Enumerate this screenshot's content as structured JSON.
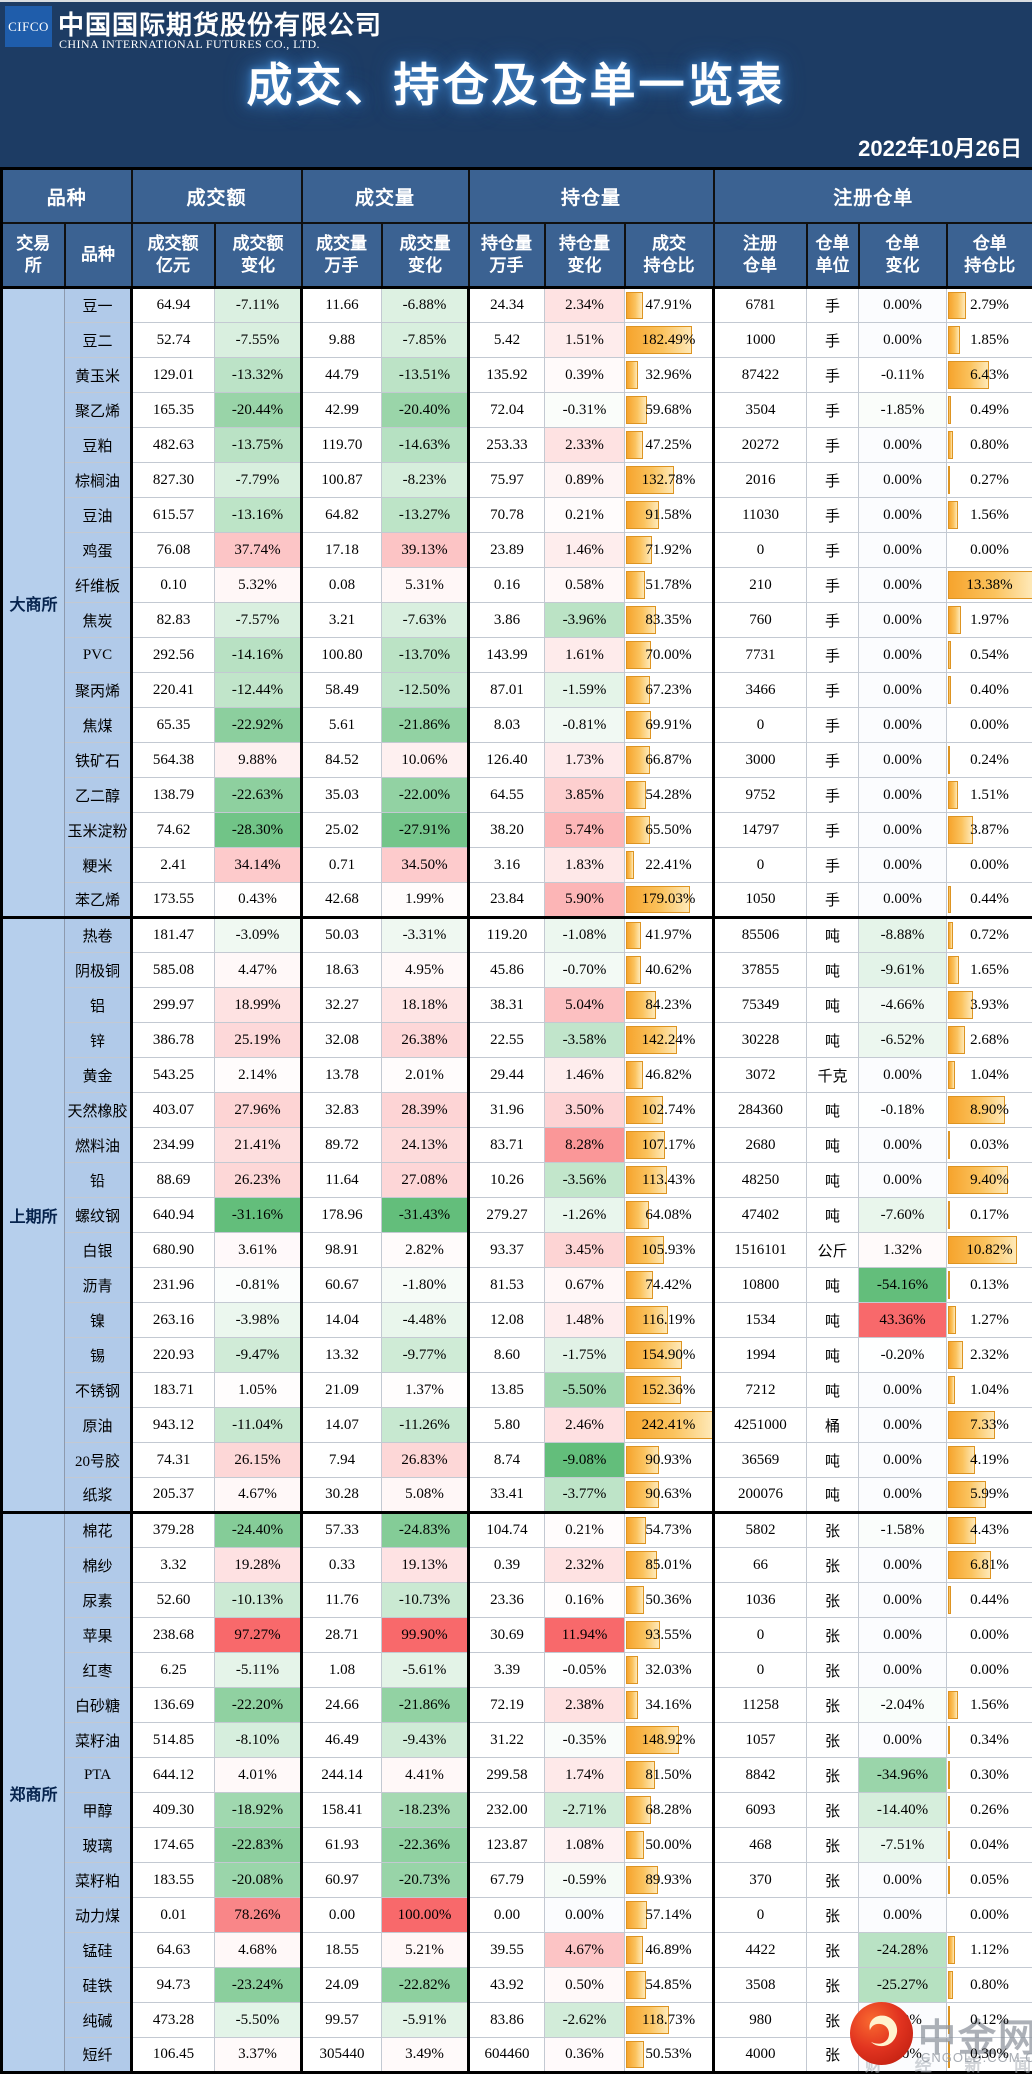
{
  "header": {
    "logo_abbr": "CIFCO",
    "company_cn": "中国国际期货股份有限公司",
    "company_en": "CHINA INTERNATIONAL FUTURES CO., LTD.",
    "title": "成交、持仓及仓单一览表",
    "date": "2022年10月26日"
  },
  "colors": {
    "banner_bg": "#1d3c64",
    "header_cell_bg": "#3b6292",
    "exchange_cell_bg": "#b6cfec",
    "variety_cell_bg": "#b1cae9",
    "positive_max": "#F8696B",
    "negative_max": "#63BE7B",
    "neutral": "#FBFCFE",
    "bar_orange": "#F6A42D",
    "bar_border": "#DD9422"
  },
  "table": {
    "group_headers": [
      {
        "label": "品种",
        "span": 2
      },
      {
        "label": "成交额",
        "span": 2
      },
      {
        "label": "成交量",
        "span": 2
      },
      {
        "label": "持仓量",
        "span": 3
      },
      {
        "label": "注册仓单",
        "span": 4
      }
    ],
    "sub_headers": [
      "交易\n所",
      "品种",
      "成交额\n亿元",
      "成交额\n变化",
      "成交量\n万手",
      "成交量\n变化",
      "持仓量\n万手",
      "持仓量\n变化",
      "成交\n持仓比",
      "注册\n仓单",
      "仓单\n单位",
      "仓单\n变化",
      "仓单\n持仓比"
    ],
    "sections": [
      {
        "exchange": "大商所",
        "rows": [
          [
            "豆一",
            "64.94",
            "-7.11%",
            "11.66",
            "-6.88%",
            "24.34",
            "2.34%",
            "47.91%",
            "6781",
            "手",
            "0.00%",
            "2.79%"
          ],
          [
            "豆二",
            "52.74",
            "-7.55%",
            "9.88",
            "-7.85%",
            "5.42",
            "1.51%",
            "182.49%",
            "1000",
            "手",
            "0.00%",
            "1.85%"
          ],
          [
            "黄玉米",
            "129.01",
            "-13.32%",
            "44.79",
            "-13.51%",
            "135.92",
            "0.39%",
            "32.96%",
            "87422",
            "手",
            "-0.11%",
            "6.43%"
          ],
          [
            "聚乙烯",
            "165.35",
            "-20.44%",
            "42.99",
            "-20.40%",
            "72.04",
            "-0.31%",
            "59.68%",
            "3504",
            "手",
            "-1.85%",
            "0.49%"
          ],
          [
            "豆粕",
            "482.63",
            "-13.75%",
            "119.70",
            "-14.63%",
            "253.33",
            "2.33%",
            "47.25%",
            "20272",
            "手",
            "0.00%",
            "0.80%"
          ],
          [
            "棕榈油",
            "827.30",
            "-7.79%",
            "100.87",
            "-8.23%",
            "75.97",
            "0.89%",
            "132.78%",
            "2016",
            "手",
            "0.00%",
            "0.27%"
          ],
          [
            "豆油",
            "615.57",
            "-13.16%",
            "64.82",
            "-13.27%",
            "70.78",
            "0.21%",
            "91.58%",
            "11030",
            "手",
            "0.00%",
            "1.56%"
          ],
          [
            "鸡蛋",
            "76.08",
            "37.74%",
            "17.18",
            "39.13%",
            "23.89",
            "1.46%",
            "71.92%",
            "0",
            "手",
            "0.00%",
            "0.00%"
          ],
          [
            "纤维板",
            "0.10",
            "5.32%",
            "0.08",
            "5.31%",
            "0.16",
            "0.58%",
            "51.78%",
            "210",
            "手",
            "0.00%",
            "13.38%"
          ],
          [
            "焦炭",
            "82.83",
            "-7.57%",
            "3.21",
            "-7.63%",
            "3.86",
            "-3.96%",
            "83.35%",
            "760",
            "手",
            "0.00%",
            "1.97%"
          ],
          [
            "PVC",
            "292.56",
            "-14.16%",
            "100.80",
            "-13.70%",
            "143.99",
            "1.61%",
            "70.00%",
            "7731",
            "手",
            "0.00%",
            "0.54%"
          ],
          [
            "聚丙烯",
            "220.41",
            "-12.44%",
            "58.49",
            "-12.50%",
            "87.01",
            "-1.59%",
            "67.23%",
            "3466",
            "手",
            "0.00%",
            "0.40%"
          ],
          [
            "焦煤",
            "65.35",
            "-22.92%",
            "5.61",
            "-21.86%",
            "8.03",
            "-0.81%",
            "69.91%",
            "0",
            "手",
            "0.00%",
            "0.00%"
          ],
          [
            "铁矿石",
            "564.38",
            "9.88%",
            "84.52",
            "10.06%",
            "126.40",
            "1.73%",
            "66.87%",
            "3000",
            "手",
            "0.00%",
            "0.24%"
          ],
          [
            "乙二醇",
            "138.79",
            "-22.63%",
            "35.03",
            "-22.00%",
            "64.55",
            "3.85%",
            "54.28%",
            "9752",
            "手",
            "0.00%",
            "1.51%"
          ],
          [
            "玉米淀粉",
            "74.62",
            "-28.30%",
            "25.02",
            "-27.91%",
            "38.20",
            "5.74%",
            "65.50%",
            "14797",
            "手",
            "0.00%",
            "3.87%"
          ],
          [
            "粳米",
            "2.41",
            "34.14%",
            "0.71",
            "34.50%",
            "3.16",
            "1.83%",
            "22.41%",
            "0",
            "手",
            "0.00%",
            "0.00%"
          ],
          [
            "苯乙烯",
            "173.55",
            "0.43%",
            "42.68",
            "1.99%",
            "23.84",
            "5.90%",
            "179.03%",
            "1050",
            "手",
            "0.00%",
            "0.44%"
          ]
        ]
      },
      {
        "exchange": "上期所",
        "rows": [
          [
            "热卷",
            "181.47",
            "-3.09%",
            "50.03",
            "-3.31%",
            "119.20",
            "-1.08%",
            "41.97%",
            "85506",
            "吨",
            "-8.88%",
            "0.72%"
          ],
          [
            "阴极铜",
            "585.08",
            "4.47%",
            "18.63",
            "4.95%",
            "45.86",
            "-0.70%",
            "40.62%",
            "37855",
            "吨",
            "-9.61%",
            "1.65%"
          ],
          [
            "铝",
            "299.97",
            "18.99%",
            "32.27",
            "18.18%",
            "38.31",
            "5.04%",
            "84.23%",
            "75349",
            "吨",
            "-4.66%",
            "3.93%"
          ],
          [
            "锌",
            "386.78",
            "25.19%",
            "32.08",
            "26.38%",
            "22.55",
            "-3.58%",
            "142.24%",
            "30228",
            "吨",
            "-6.52%",
            "2.68%"
          ],
          [
            "黄金",
            "543.25",
            "2.14%",
            "13.78",
            "2.01%",
            "29.44",
            "1.46%",
            "46.82%",
            "3072",
            "千克",
            "0.00%",
            "1.04%"
          ],
          [
            "天然橡胶",
            "403.07",
            "27.96%",
            "32.83",
            "28.39%",
            "31.96",
            "3.50%",
            "102.74%",
            "284360",
            "吨",
            "-0.18%",
            "8.90%"
          ],
          [
            "燃料油",
            "234.99",
            "21.41%",
            "89.72",
            "24.13%",
            "83.71",
            "8.28%",
            "107.17%",
            "2680",
            "吨",
            "0.00%",
            "0.03%"
          ],
          [
            "铅",
            "88.69",
            "26.23%",
            "11.64",
            "27.08%",
            "10.26",
            "-3.56%",
            "113.43%",
            "48250",
            "吨",
            "0.00%",
            "9.40%"
          ],
          [
            "螺纹钢",
            "640.94",
            "-31.16%",
            "178.96",
            "-31.43%",
            "279.27",
            "-1.26%",
            "64.08%",
            "47402",
            "吨",
            "-7.60%",
            "0.17%"
          ],
          [
            "白银",
            "680.90",
            "3.61%",
            "98.91",
            "2.82%",
            "93.37",
            "3.45%",
            "105.93%",
            "1516101",
            "公斤",
            "1.32%",
            "10.82%"
          ],
          [
            "沥青",
            "231.96",
            "-0.81%",
            "60.67",
            "-1.80%",
            "81.53",
            "0.67%",
            "74.42%",
            "10800",
            "吨",
            "-54.16%",
            "0.13%"
          ],
          [
            "镍",
            "263.16",
            "-3.98%",
            "14.04",
            "-4.48%",
            "12.08",
            "1.48%",
            "116.19%",
            "1534",
            "吨",
            "43.36%",
            "1.27%"
          ],
          [
            "锡",
            "220.93",
            "-9.47%",
            "13.32",
            "-9.77%",
            "8.60",
            "-1.75%",
            "154.90%",
            "1994",
            "吨",
            "-0.20%",
            "2.32%"
          ],
          [
            "不锈钢",
            "183.71",
            "1.05%",
            "21.09",
            "1.37%",
            "13.85",
            "-5.50%",
            "152.36%",
            "7212",
            "吨",
            "0.00%",
            "1.04%"
          ],
          [
            "原油",
            "943.12",
            "-11.04%",
            "14.07",
            "-11.26%",
            "5.80",
            "2.46%",
            "242.41%",
            "4251000",
            "桶",
            "0.00%",
            "7.33%"
          ],
          [
            "20号胶",
            "74.31",
            "26.15%",
            "7.94",
            "26.83%",
            "8.74",
            "-9.08%",
            "90.93%",
            "36569",
            "吨",
            "0.00%",
            "4.19%"
          ],
          [
            "纸浆",
            "205.37",
            "4.67%",
            "30.28",
            "5.08%",
            "33.41",
            "-3.77%",
            "90.63%",
            "200076",
            "吨",
            "0.00%",
            "5.99%"
          ]
        ]
      },
      {
        "exchange": "郑商所",
        "rows": [
          [
            "棉花",
            "379.28",
            "-24.40%",
            "57.33",
            "-24.83%",
            "104.74",
            "0.21%",
            "54.73%",
            "5802",
            "张",
            "-1.58%",
            "4.43%"
          ],
          [
            "棉纱",
            "3.32",
            "19.28%",
            "0.33",
            "19.13%",
            "0.39",
            "2.32%",
            "85.01%",
            "66",
            "张",
            "0.00%",
            "6.81%"
          ],
          [
            "尿素",
            "52.60",
            "-10.13%",
            "11.76",
            "-10.73%",
            "23.36",
            "0.16%",
            "50.36%",
            "1036",
            "张",
            "0.00%",
            "0.44%"
          ],
          [
            "苹果",
            "238.68",
            "97.27%",
            "28.71",
            "99.90%",
            "30.69",
            "11.94%",
            "93.55%",
            "0",
            "张",
            "0.00%",
            "0.00%"
          ],
          [
            "红枣",
            "6.25",
            "-5.11%",
            "1.08",
            "-5.61%",
            "3.39",
            "-0.05%",
            "32.03%",
            "0",
            "张",
            "0.00%",
            "0.00%"
          ],
          [
            "白砂糖",
            "136.69",
            "-22.20%",
            "24.66",
            "-21.86%",
            "72.19",
            "2.38%",
            "34.16%",
            "11258",
            "张",
            "-2.04%",
            "1.56%"
          ],
          [
            "菜籽油",
            "514.85",
            "-8.10%",
            "46.49",
            "-9.43%",
            "31.22",
            "-0.35%",
            "148.92%",
            "1057",
            "张",
            "0.00%",
            "0.34%"
          ],
          [
            "PTA",
            "644.12",
            "4.01%",
            "244.14",
            "4.41%",
            "299.58",
            "1.74%",
            "81.50%",
            "8842",
            "张",
            "-34.96%",
            "0.30%"
          ],
          [
            "甲醇",
            "409.30",
            "-18.92%",
            "158.41",
            "-18.23%",
            "232.00",
            "-2.71%",
            "68.28%",
            "6093",
            "张",
            "-14.40%",
            "0.26%"
          ],
          [
            "玻璃",
            "174.65",
            "-22.83%",
            "61.93",
            "-22.36%",
            "123.87",
            "1.08%",
            "50.00%",
            "468",
            "张",
            "-7.51%",
            "0.04%"
          ],
          [
            "菜籽粕",
            "183.55",
            "-20.08%",
            "60.97",
            "-20.73%",
            "67.79",
            "-0.59%",
            "89.93%",
            "370",
            "张",
            "0.00%",
            "0.05%"
          ],
          [
            "动力煤",
            "0.01",
            "78.26%",
            "0.00",
            "100.00%",
            "0.00",
            "0.00%",
            "57.14%",
            "0",
            "张",
            "0.00%",
            "0.00%"
          ],
          [
            "锰硅",
            "64.63",
            "4.68%",
            "18.55",
            "5.21%",
            "39.55",
            "4.67%",
            "46.89%",
            "4422",
            "张",
            "-24.28%",
            "1.12%"
          ],
          [
            "硅铁",
            "94.73",
            "-23.24%",
            "24.09",
            "-22.82%",
            "43.92",
            "0.50%",
            "54.85%",
            "3508",
            "张",
            "-25.27%",
            "0.80%"
          ],
          [
            "纯碱",
            "473.28",
            "-5.50%",
            "99.57",
            "-5.91%",
            "83.86",
            "-2.62%",
            "118.73%",
            "980",
            "张",
            "0.00%",
            "0.12%"
          ],
          [
            "短纤",
            "106.45",
            "3.37%",
            "305440",
            "3.49%",
            "604460",
            "0.36%",
            "50.53%",
            "4000",
            "张",
            "0.00%",
            "0.30%"
          ]
        ]
      }
    ]
  },
  "watermark": {
    "site_name": "中金网",
    "site_url": "CNGOLD.COM.CN",
    "tagline": "财 经 新 闻"
  }
}
